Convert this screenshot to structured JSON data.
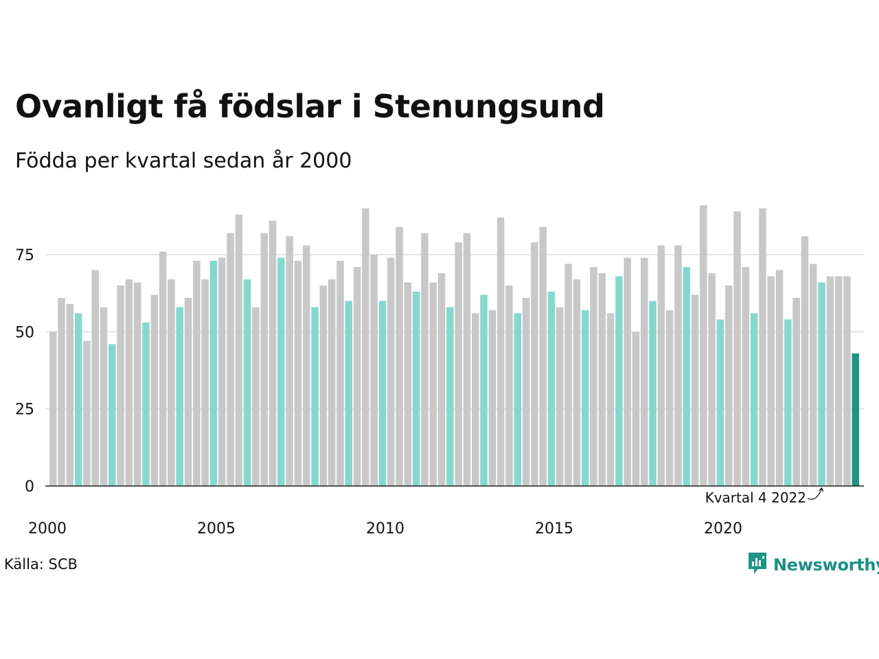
{
  "chart_data": {
    "type": "bar",
    "title": "Ovanligt få födslar i Stenungsund",
    "subtitle": "Födda per kvartal sedan år 2000",
    "xlabel": "",
    "ylabel": "",
    "ylim": [
      0,
      95
    ],
    "y_ticks": [
      "0",
      "25",
      "50",
      "75"
    ],
    "y_tick_values": [
      0,
      25,
      50,
      75
    ],
    "x_ticks": [
      "2000",
      "2005",
      "2010",
      "2015",
      "2020"
    ],
    "x_tick_index": [
      0,
      20,
      40,
      60,
      80
    ],
    "grid": true,
    "highlight_quarter": 4,
    "colors": {
      "default": "#c8c8c8",
      "highlight_quarter": "#86d8cc",
      "latest": "#1d9486",
      "grid": "#dddddd",
      "axis": "#222222"
    },
    "annotation": "Kvartal 4 2022",
    "start_year": 2000,
    "values": [
      50,
      61,
      59,
      56,
      47,
      70,
      58,
      46,
      65,
      67,
      66,
      53,
      62,
      76,
      67,
      58,
      61,
      73,
      67,
      73,
      74,
      82,
      88,
      67,
      58,
      82,
      86,
      74,
      81,
      73,
      78,
      58,
      65,
      67,
      73,
      60,
      71,
      90,
      75,
      60,
      74,
      84,
      66,
      63,
      82,
      66,
      69,
      58,
      79,
      82,
      56,
      62,
      57,
      87,
      65,
      56,
      61,
      79,
      84,
      63,
      58,
      72,
      67,
      57,
      71,
      69,
      56,
      68,
      74,
      50,
      74,
      60,
      78,
      57,
      78,
      71,
      62,
      91,
      69,
      54,
      65,
      89,
      71,
      56,
      90,
      68,
      70,
      54,
      61,
      81,
      72,
      66,
      68,
      68,
      68,
      43
    ]
  },
  "source": "Källa: SCB",
  "brand": {
    "name": "Newsworthy",
    "icon": "newsworthy-logo-icon"
  }
}
